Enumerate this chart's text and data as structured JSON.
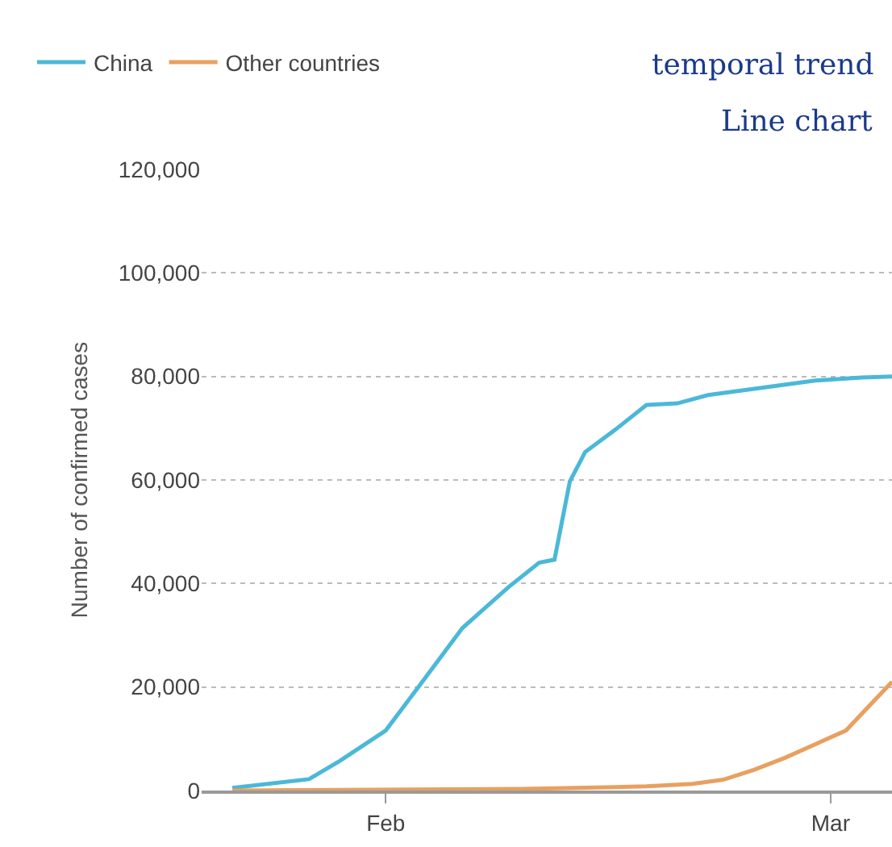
{
  "chart_data": {
    "type": "line",
    "ylabel": "Number of confirmed cases",
    "legend": "top left",
    "grid": "y",
    "line_style": "solid",
    "marker": "none",
    "x": [
      "--01-22",
      "--01-27",
      "--01-29",
      "--02-01",
      "--02-03",
      "--02-06",
      "--02-09",
      "--02-11",
      "--02-12",
      "--02-13",
      "--02-14",
      "--02-16",
      "--02-18",
      "--02-20",
      "--02-22",
      "--02-29",
      "--03-03",
      "--03-05"
    ],
    "series": [
      {
        "name": "China",
        "color": "#4bb8d8",
        "values": [
          500,
          2200,
          5700,
          11600,
          19500,
          31400,
          39300,
          44000,
          44600,
          59700,
          65400,
          69800,
          74500,
          74800,
          76400,
          79200,
          79800,
          80000
        ]
      },
      {
        "name": "Other countries",
        "color": "#e8a060",
        "x": [
          "--01-22",
          "--02-10",
          "--02-18",
          "--02-21",
          "--02-23",
          "--02-25",
          "--02-27",
          "--03-02",
          "--03-05"
        ],
        "values": [
          0,
          300,
          800,
          1300,
          2100,
          4000,
          6300,
          11600,
          21000
        ]
      }
    ],
    "xlim": [
      "--01-20",
      "--03-05"
    ],
    "xticks": [
      {
        "value": "--02-01",
        "label": "Feb"
      },
      {
        "value": "--03-01",
        "label": "Mar"
      }
    ],
    "ylim": [
      0,
      120000
    ],
    "yticks": [
      {
        "value": 0,
        "label": "0"
      },
      {
        "value": 20000,
        "label": "20,000"
      },
      {
        "value": 40000,
        "label": "40,000"
      },
      {
        "value": 60000,
        "label": "60,000"
      },
      {
        "value": 80000,
        "label": "80,000"
      },
      {
        "value": 100000,
        "label": "100,000"
      },
      {
        "value": 120000,
        "label": "120,000"
      }
    ],
    "annotations": [
      "temporal trend",
      "Line chart"
    ]
  }
}
